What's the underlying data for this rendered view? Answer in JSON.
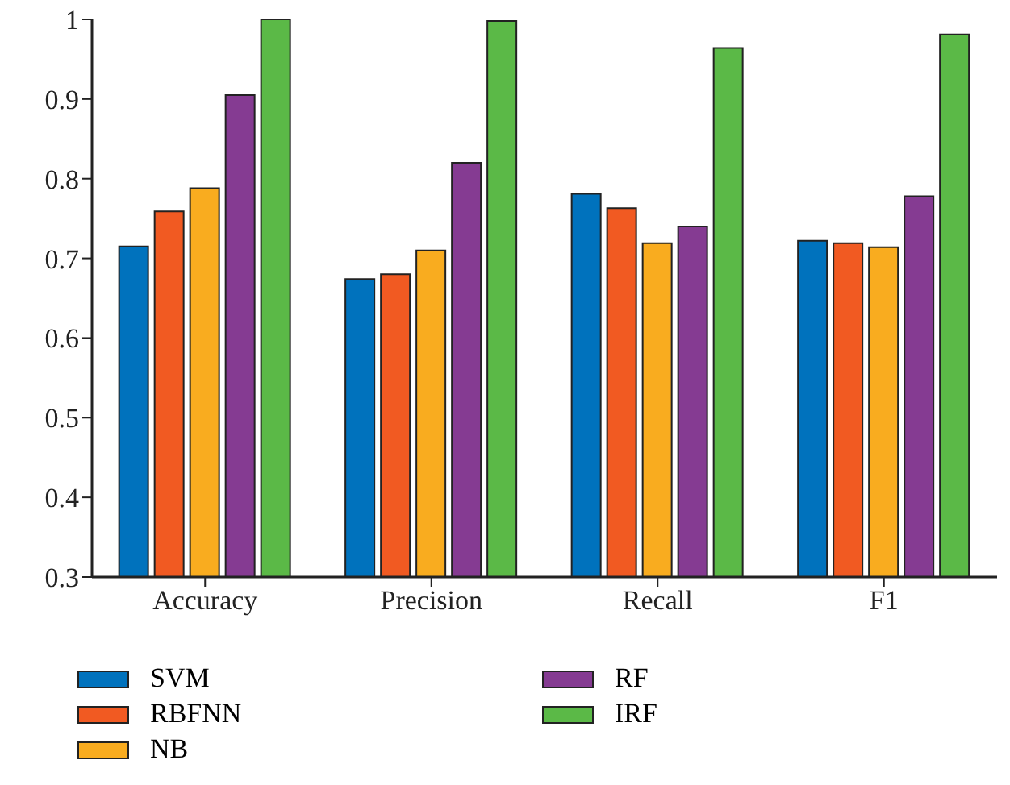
{
  "chart_data": {
    "type": "bar",
    "categories": [
      "Accuracy",
      "Precision",
      "Recall",
      "F1"
    ],
    "series": [
      {
        "name": "SVM",
        "color": "#0072bd",
        "values": [
          0.715,
          0.674,
          0.781,
          0.722
        ]
      },
      {
        "name": "RBFNN",
        "color": "#f15a22",
        "values": [
          0.759,
          0.68,
          0.763,
          0.719
        ]
      },
      {
        "name": "NB",
        "color": "#f9ac1f",
        "values": [
          0.788,
          0.71,
          0.719,
          0.714
        ]
      },
      {
        "name": "RF",
        "color": "#853b92",
        "values": [
          0.905,
          0.82,
          0.74,
          0.778
        ]
      },
      {
        "name": "IRF",
        "color": "#5bb947",
        "values": [
          1.0,
          0.998,
          0.964,
          0.981
        ]
      }
    ],
    "ylim": [
      0.3,
      1
    ],
    "yticks": [
      0.3,
      0.4,
      0.5,
      0.6,
      0.7,
      0.8,
      0.9,
      1
    ],
    "grid": false,
    "legend": "bottom"
  }
}
